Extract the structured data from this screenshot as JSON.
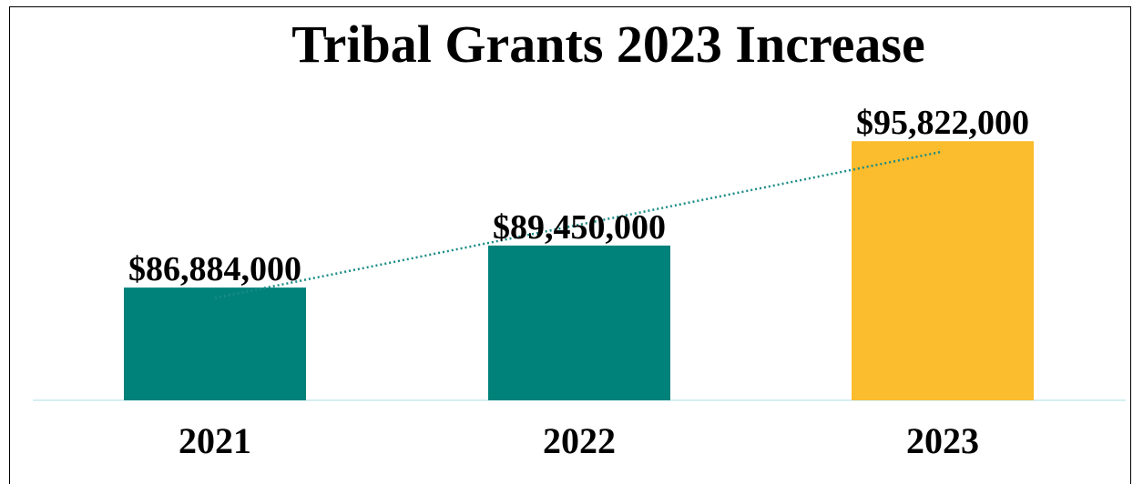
{
  "chart_data": {
    "type": "bar",
    "title": "Tribal Grants 2023 Increase",
    "categories": [
      "2021",
      "2022",
      "2023"
    ],
    "values": [
      86884000,
      89450000,
      95822000
    ],
    "data_labels": [
      "$86,884,000",
      "$89,450,000",
      "$95,822,000"
    ],
    "bar_colors": [
      "#00827a",
      "#00827a",
      "#fbbc2e"
    ],
    "trendline": {
      "type": "linear",
      "style": "dotted",
      "color": "#1a8c86"
    },
    "axis_color": "#d6eff2",
    "xlabel": "",
    "ylabel": "",
    "ylim": [
      80000000,
      96000000
    ],
    "grid": false,
    "legend": "none"
  }
}
